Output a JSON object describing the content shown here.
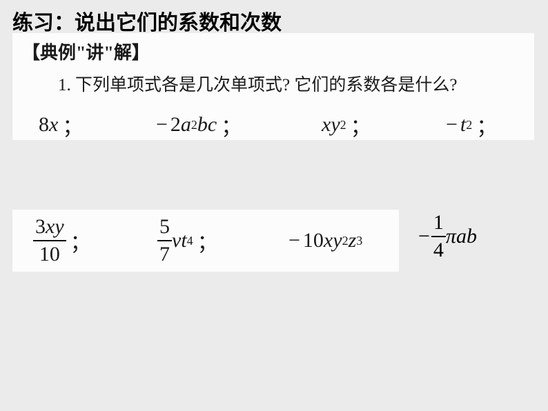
{
  "title_part1": "练习：说出它们的系",
  "title_part2": "数和次数",
  "heading": "【典例\"讲\"解】",
  "question": "1. 下列单项式各是几次单项式? 它们的系数各是什么?",
  "row1": {
    "e1": {
      "text": "8x",
      "coef": "8",
      "var": "x",
      "semi": "；"
    },
    "e2": {
      "minus": "−",
      "coef": "2",
      "v1": "a",
      "p1": "2",
      "v2": "bc",
      "semi": "；"
    },
    "e3": {
      "v1": "xy",
      "p1": "2",
      "semi": "；"
    },
    "e4": {
      "minus": "−",
      "v1": "t",
      "p1": "2",
      "semi": "；"
    }
  },
  "row2": {
    "e1": {
      "num": "3xy",
      "den": "10",
      "semi": "；",
      "num_coef": "3",
      "num_var": "xy"
    },
    "e2": {
      "num": "5",
      "den": "7",
      "v1": "vt",
      "p1": "4",
      "semi": "；"
    },
    "e3": {
      "minus": "−",
      "coef": "10",
      "v1": "xy",
      "p1": "2",
      "v2": "z",
      "p2": "3"
    }
  },
  "last": {
    "minus": "−",
    "num": "1",
    "den": "4",
    "pi": "π",
    "v": "ab"
  }
}
